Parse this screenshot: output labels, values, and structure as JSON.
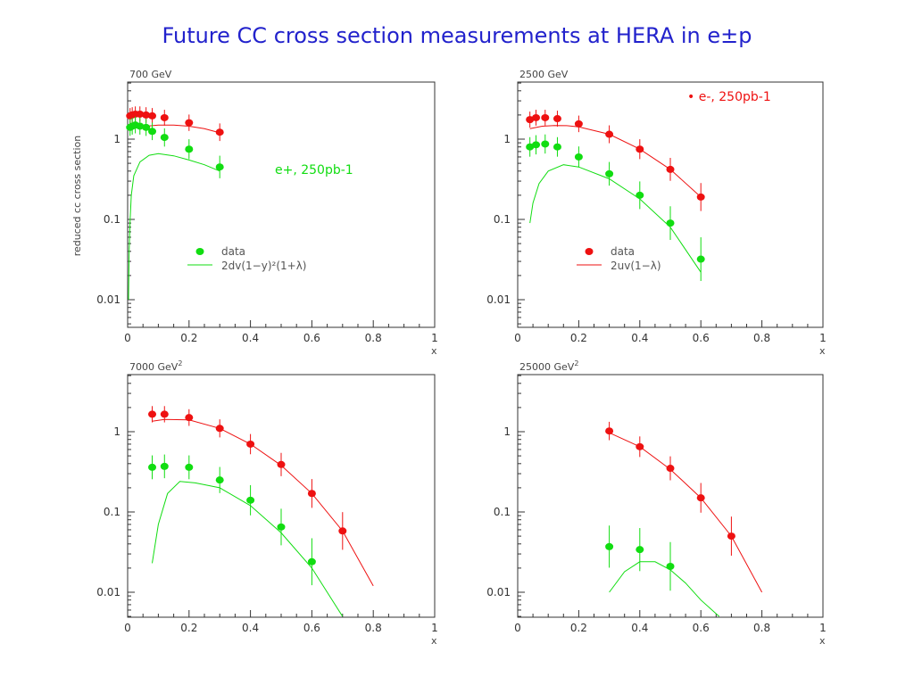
{
  "title": "Future CC cross section measurements at HERA in e±p",
  "colors": {
    "title": "#2222cc",
    "electron": "#ee1111",
    "positron": "#11dd11"
  },
  "chart_data": [
    {
      "type": "scatter",
      "panel_label": "700 GeV",
      "panel_label_sup": "",
      "ylabel": "reduced cc cross section",
      "xlabel": "x",
      "xlim": [
        0,
        1
      ],
      "ylim": [
        0.005,
        4
      ],
      "yscale": "log",
      "x_ticks": [
        "0",
        "0.2",
        "0.4",
        "0.6",
        "0.8",
        "1"
      ],
      "y_ticks": [
        "1",
        "0.1",
        "0.01"
      ],
      "annotation": {
        "text": "e+, 250pb-1",
        "color": "#11dd11"
      },
      "legend": {
        "marker_label": "data",
        "marker_color": "#11dd11",
        "line_label": "2dv(1−y)²(1+λ)",
        "line_color": "#11dd11"
      },
      "series": [
        {
          "name": "",
          "color": "#ee1111",
          "x": [
            0.008,
            0.015,
            0.025,
            0.04,
            0.06,
            0.08,
            0.12,
            0.2,
            0.3
          ],
          "y": [
            1.95,
            2.0,
            2.05,
            2.05,
            2.0,
            1.95,
            1.85,
            1.6,
            1.22
          ]
        },
        {
          "name": "",
          "color": "#11dd11",
          "x": [
            0.008,
            0.015,
            0.025,
            0.04,
            0.06,
            0.08,
            0.12,
            0.2,
            0.3
          ],
          "y": [
            1.4,
            1.45,
            1.5,
            1.45,
            1.4,
            1.25,
            1.05,
            0.75,
            0.45
          ]
        }
      ],
      "curves": [
        {
          "color": "#ee1111",
          "x": [
            0.01,
            0.03,
            0.06,
            0.1,
            0.15,
            0.2,
            0.25,
            0.3
          ],
          "y": [
            1.3,
            1.4,
            1.45,
            1.5,
            1.5,
            1.45,
            1.35,
            1.2
          ]
        },
        {
          "color": "#11dd11",
          "x": [
            0.003,
            0.005,
            0.008,
            0.012,
            0.02,
            0.04,
            0.07,
            0.1,
            0.15,
            0.2,
            0.25,
            0.3
          ],
          "y": [
            0.01,
            0.04,
            0.1,
            0.2,
            0.35,
            0.52,
            0.63,
            0.66,
            0.62,
            0.55,
            0.48,
            0.4
          ]
        }
      ]
    },
    {
      "type": "scatter",
      "panel_label": "2500 GeV",
      "panel_label_sup": "",
      "ylabel": "",
      "xlabel": "x",
      "xlim": [
        0,
        1
      ],
      "ylim": [
        0.005,
        4
      ],
      "yscale": "log",
      "x_ticks": [
        "0",
        "0.2",
        "0.4",
        "0.6",
        "0.8",
        "1"
      ],
      "y_ticks": [
        "1",
        "0.1",
        "0.01"
      ],
      "annotation": {
        "text": "• e-, 250pb-1",
        "color": "#ee1111"
      },
      "legend": {
        "marker_label": "data",
        "marker_color": "#ee1111",
        "line_label": "2uv(1−λ)",
        "line_color": "#ee1111"
      },
      "series": [
        {
          "name": "",
          "color": "#ee1111",
          "x": [
            0.04,
            0.06,
            0.09,
            0.13,
            0.2,
            0.3,
            0.4,
            0.5,
            0.6
          ],
          "y": [
            1.75,
            1.85,
            1.85,
            1.8,
            1.55,
            1.15,
            0.75,
            0.42,
            0.19
          ]
        },
        {
          "name": "",
          "color": "#11dd11",
          "x": [
            0.04,
            0.06,
            0.09,
            0.13,
            0.2,
            0.3,
            0.4,
            0.5,
            0.6
          ],
          "y": [
            0.8,
            0.85,
            0.87,
            0.8,
            0.6,
            0.37,
            0.2,
            0.09,
            0.032
          ]
        }
      ],
      "curves": [
        {
          "color": "#ee1111",
          "x": [
            0.04,
            0.08,
            0.12,
            0.16,
            0.2,
            0.3,
            0.4,
            0.5,
            0.6
          ],
          "y": [
            1.35,
            1.45,
            1.48,
            1.47,
            1.42,
            1.15,
            0.75,
            0.42,
            0.19
          ]
        },
        {
          "color": "#11dd11",
          "x": [
            0.04,
            0.05,
            0.07,
            0.1,
            0.15,
            0.2,
            0.3,
            0.4,
            0.5,
            0.6
          ],
          "y": [
            0.09,
            0.16,
            0.28,
            0.4,
            0.48,
            0.45,
            0.32,
            0.18,
            0.08,
            0.022
          ]
        }
      ]
    },
    {
      "type": "scatter",
      "panel_label": "7000 GeV",
      "panel_label_sup": "2",
      "ylabel": "",
      "xlabel": "x",
      "xlim": [
        0,
        1
      ],
      "ylim": [
        0.005,
        4
      ],
      "yscale": "log",
      "x_ticks": [
        "0",
        "0.2",
        "0.4",
        "0.6",
        "0.8",
        "1"
      ],
      "y_ticks": [
        "1",
        "0.1",
        "0.01"
      ],
      "series": [
        {
          "name": "",
          "color": "#ee1111",
          "x": [
            0.08,
            0.12,
            0.2,
            0.3,
            0.4,
            0.5,
            0.6,
            0.7
          ],
          "y": [
            1.65,
            1.65,
            1.5,
            1.1,
            0.7,
            0.39,
            0.17,
            0.058
          ]
        },
        {
          "name": "",
          "color": "#11dd11",
          "x": [
            0.08,
            0.12,
            0.2,
            0.3,
            0.4,
            0.5,
            0.6
          ],
          "y": [
            0.36,
            0.37,
            0.36,
            0.25,
            0.14,
            0.065,
            0.024
          ]
        }
      ],
      "curves": [
        {
          "color": "#ee1111",
          "x": [
            0.08,
            0.12,
            0.2,
            0.3,
            0.4,
            0.5,
            0.6,
            0.7,
            0.8
          ],
          "y": [
            1.35,
            1.42,
            1.4,
            1.1,
            0.7,
            0.38,
            0.17,
            0.058,
            0.012
          ]
        },
        {
          "color": "#11dd11",
          "x": [
            0.08,
            0.1,
            0.13,
            0.17,
            0.22,
            0.3,
            0.4,
            0.5,
            0.6,
            0.7
          ],
          "y": [
            0.023,
            0.07,
            0.17,
            0.24,
            0.23,
            0.2,
            0.12,
            0.055,
            0.02,
            0.005
          ]
        }
      ]
    },
    {
      "type": "scatter",
      "panel_label": "25000 GeV",
      "panel_label_sup": "2",
      "ylabel": "",
      "xlabel": "x",
      "xlim": [
        0,
        1
      ],
      "ylim": [
        0.005,
        4
      ],
      "yscale": "log",
      "x_ticks": [
        "0",
        "0.2",
        "0.4",
        "0.6",
        "0.8",
        "1"
      ],
      "y_ticks": [
        "1",
        "0.1",
        "0.01"
      ],
      "series": [
        {
          "name": "",
          "color": "#ee1111",
          "x": [
            0.3,
            0.4,
            0.5,
            0.6,
            0.7
          ],
          "y": [
            1.02,
            0.65,
            0.35,
            0.15,
            0.05
          ]
        },
        {
          "name": "",
          "color": "#11dd11",
          "x": [
            0.3,
            0.4,
            0.5
          ],
          "y": [
            0.037,
            0.034,
            0.021
          ]
        }
      ],
      "curves": [
        {
          "color": "#ee1111",
          "x": [
            0.3,
            0.4,
            0.5,
            0.6,
            0.7,
            0.8
          ],
          "y": [
            0.97,
            0.65,
            0.34,
            0.15,
            0.05,
            0.01
          ]
        },
        {
          "color": "#11dd11",
          "x": [
            0.3,
            0.35,
            0.4,
            0.45,
            0.5,
            0.55,
            0.6,
            0.66
          ],
          "y": [
            0.01,
            0.018,
            0.024,
            0.024,
            0.019,
            0.013,
            0.008,
            0.005
          ]
        }
      ]
    }
  ]
}
